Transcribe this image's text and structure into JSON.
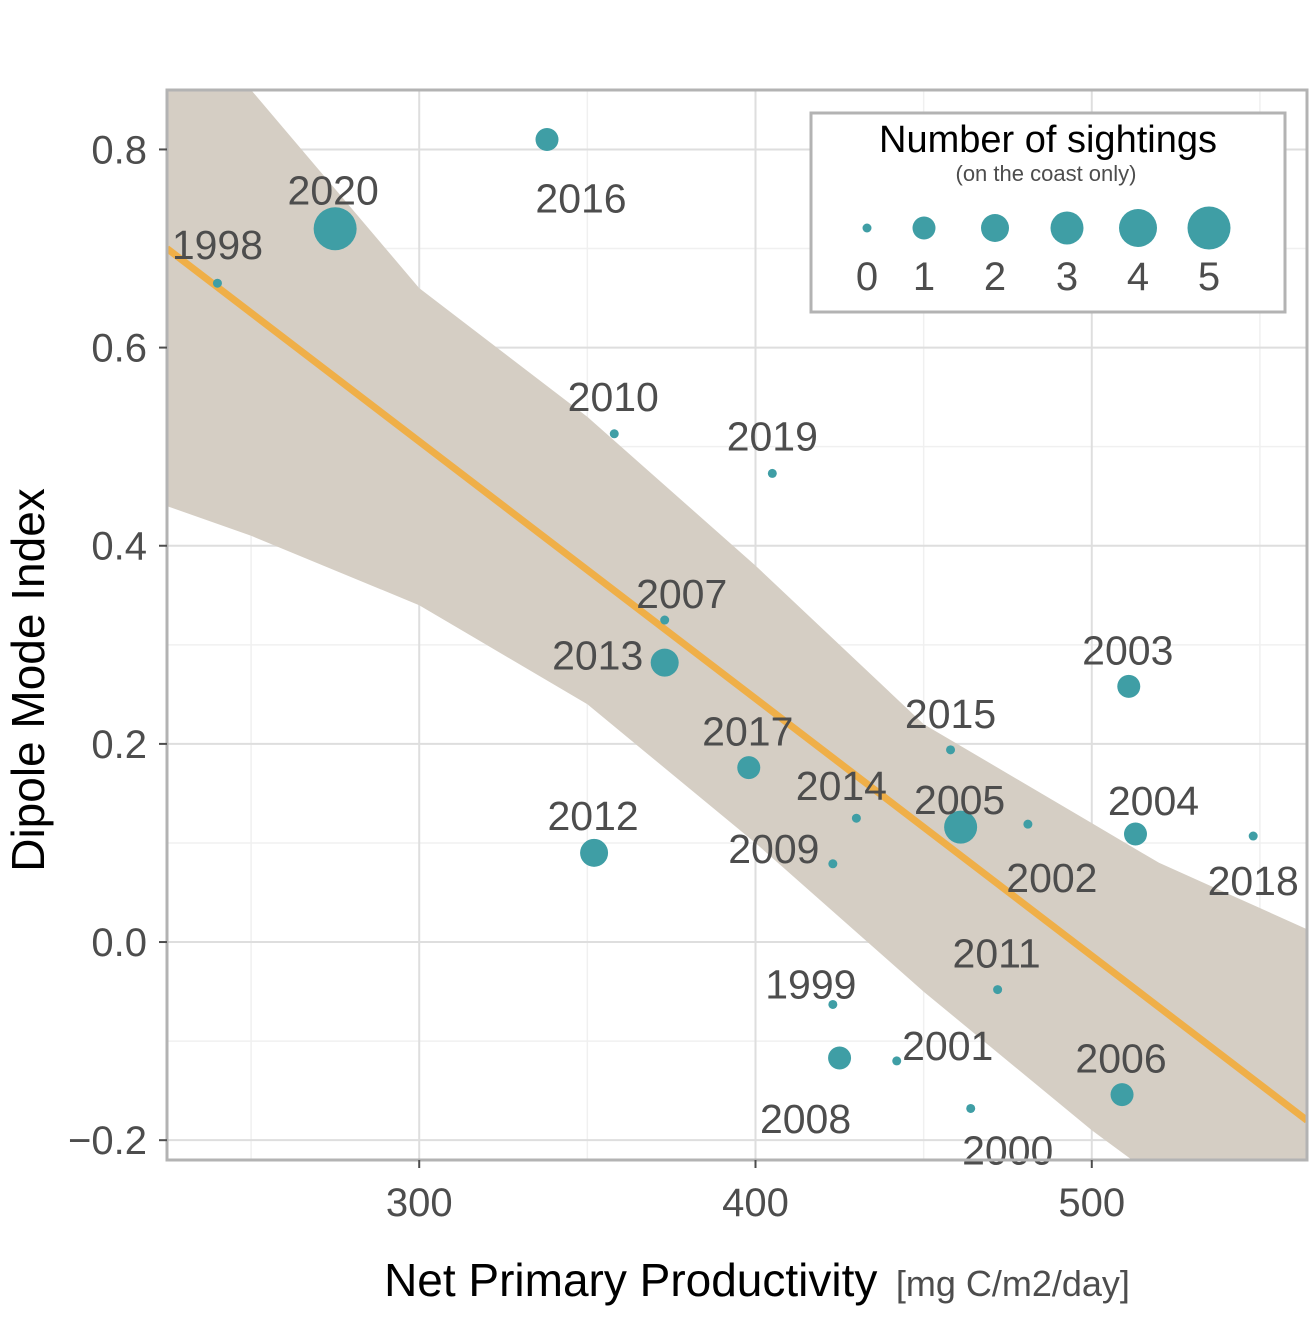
{
  "chart_data": {
    "type": "scatter",
    "xlabel": "Net Primary Productivity",
    "xlabel_unit": "[mg C/m2/day]",
    "ylabel": "Dipole Mode Index",
    "xlim": [
      225,
      564
    ],
    "ylim": [
      -0.22,
      0.86
    ],
    "x_ticks": [
      300,
      400,
      500
    ],
    "x_tick_labels": [
      "300",
      "400",
      "500"
    ],
    "y_ticks": [
      0.8,
      0.6,
      0.4,
      0.2,
      0.0,
      -0.2
    ],
    "y_tick_labels": [
      "0.8",
      "0.6",
      "0.4",
      "0.2",
      "0.0",
      "−0.2"
    ],
    "grid": true,
    "point_color": "#3f9ea5",
    "size_variable": "Number of sightings",
    "points": [
      {
        "label": "1998",
        "x": 240,
        "y": 0.665,
        "size": 0
      },
      {
        "label": "2020",
        "x": 275,
        "y": 0.72,
        "size": 5
      },
      {
        "label": "2016",
        "x": 338,
        "y": 0.81,
        "size": 1
      },
      {
        "label": "2010",
        "x": 358,
        "y": 0.513,
        "size": 0
      },
      {
        "label": "2019",
        "x": 405,
        "y": 0.473,
        "size": 0
      },
      {
        "label": "2007",
        "x": 373,
        "y": 0.325,
        "size": 0
      },
      {
        "label": "2013",
        "x": 373,
        "y": 0.282,
        "size": 2
      },
      {
        "label": "2017",
        "x": 398,
        "y": 0.176,
        "size": 1
      },
      {
        "label": "2012",
        "x": 352,
        "y": 0.09,
        "size": 2
      },
      {
        "label": "2014",
        "x": 430,
        "y": 0.125,
        "size": 0
      },
      {
        "label": "2009",
        "x": 423,
        "y": 0.079,
        "size": 0
      },
      {
        "label": "2015",
        "x": 458,
        "y": 0.194,
        "size": 0
      },
      {
        "label": "2005",
        "x": 461,
        "y": 0.116,
        "size": 3
      },
      {
        "label": "2002",
        "x": 481,
        "y": 0.119,
        "size": 0
      },
      {
        "label": "2003",
        "x": 511,
        "y": 0.258,
        "size": 1
      },
      {
        "label": "2004",
        "x": 513,
        "y": 0.109,
        "size": 1
      },
      {
        "label": "2018",
        "x": 548,
        "y": 0.107,
        "size": 0
      },
      {
        "label": "2011",
        "x": 472,
        "y": -0.048,
        "size": 0
      },
      {
        "label": "1999",
        "x": 423,
        "y": -0.063,
        "size": 0
      },
      {
        "label": "2008",
        "x": 425,
        "y": -0.117,
        "size": 1
      },
      {
        "label": "2001",
        "x": 442,
        "y": -0.12,
        "size": 0
      },
      {
        "label": "2000",
        "x": 464,
        "y": -0.168,
        "size": 0
      },
      {
        "label": "2006",
        "x": 509,
        "y": -0.154,
        "size": 1
      }
    ],
    "trend": {
      "type": "linear fit with confidence band",
      "line_color": "#efaf48",
      "band_color": "#d5cec4",
      "x": [
        225,
        564
      ],
      "y": [
        0.7,
        -0.18
      ],
      "band": [
        {
          "x": 225,
          "lower": 0.44,
          "upper": 0.96
        },
        {
          "x": 250,
          "lower": 0.41,
          "upper": 0.86
        },
        {
          "x": 300,
          "lower": 0.34,
          "upper": 0.66
        },
        {
          "x": 350,
          "lower": 0.24,
          "upper": 0.53
        },
        {
          "x": 400,
          "lower": 0.1,
          "upper": 0.38
        },
        {
          "x": 450,
          "lower": -0.05,
          "upper": 0.22
        },
        {
          "x": 500,
          "lower": -0.19,
          "upper": 0.12
        },
        {
          "x": 520,
          "lower": -0.24,
          "upper": 0.08
        },
        {
          "x": 564,
          "lower": -0.36,
          "upper": 0.013
        }
      ]
    },
    "legend": {
      "title": "Number of sightings",
      "subtitle": "(on the coast only)",
      "position": "top-right",
      "keys": [
        "0",
        "1",
        "2",
        "3",
        "4",
        "5"
      ]
    }
  }
}
